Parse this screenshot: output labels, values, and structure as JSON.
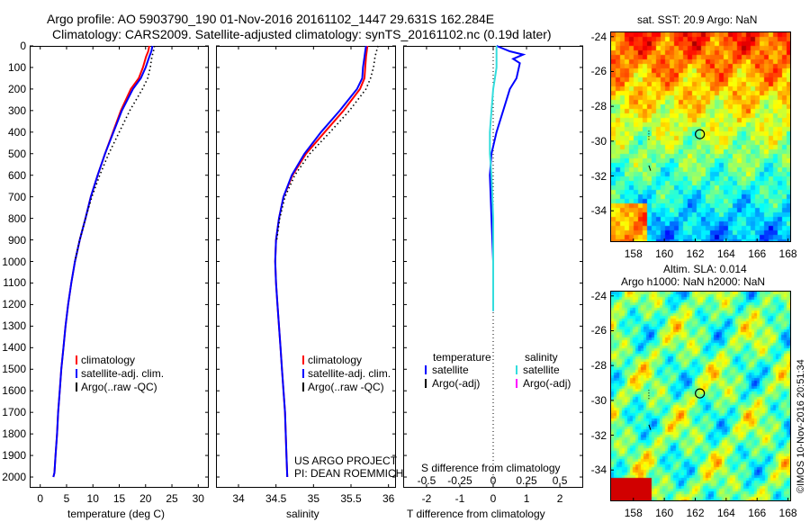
{
  "header": {
    "line1": "Argo profile: AO 5903790_190 01-Nov-2016 20161102_1447 29.631S 162.284E",
    "line2": "Climatology: CARS2009. Satellite-adjusted climatology: synTS_20161102.nc (0.19d later)"
  },
  "colors": {
    "climatology": "#ff0000",
    "satellite": "#0000ff",
    "argo": "#000000",
    "salinity_satellite": "#33dddd",
    "salinity_argo": "#ff00ff"
  },
  "chart_data": [
    {
      "type": "line",
      "name": "temperature",
      "xlabel": "temperature (deg C)",
      "ylabel": "",
      "xlim": [
        -2,
        32
      ],
      "ylim": [
        2050,
        0
      ],
      "xticks": [
        "0",
        "5",
        "10",
        "15",
        "20",
        "25",
        "30"
      ],
      "xtick_values": [
        0,
        5,
        10,
        15,
        20,
        25,
        30
      ],
      "yticks": [
        "0",
        "100",
        "200",
        "300",
        "400",
        "500",
        "600",
        "700",
        "800",
        "900",
        "1000",
        "1100",
        "1200",
        "1300",
        "1400",
        "1500",
        "1600",
        "1700",
        "1800",
        "1900",
        "2000"
      ],
      "legend": [
        "climatology",
        "satellite-adj. clim.",
        "Argo(..raw -QC)"
      ],
      "legend_position": "lower-left",
      "series": [
        {
          "name": "climatology",
          "style": "solid",
          "color": "#ff0000",
          "x": [
            20.7,
            20.5,
            20.1,
            19.5,
            18.7,
            17.2,
            15.3,
            13.8,
            12.3,
            10.9,
            9.6,
            8.6,
            7.5,
            6.6,
            5.9,
            5.3,
            4.8,
            4.4,
            4.0,
            3.7,
            3.4,
            3.2,
            2.9,
            2.7,
            2.5
          ],
          "y": [
            0,
            25,
            50,
            100,
            150,
            200,
            300,
            400,
            500,
            600,
            700,
            800,
            900,
            1000,
            1100,
            1200,
            1300,
            1400,
            1500,
            1600,
            1700,
            1800,
            1900,
            1980,
            2000
          ]
        },
        {
          "name": "satellite-adj. clim.",
          "style": "solid",
          "color": "#0000ff",
          "x": [
            21.3,
            21.1,
            20.7,
            20.0,
            19.1,
            17.6,
            15.5,
            13.9,
            12.3,
            10.9,
            9.6,
            8.6,
            7.5,
            6.6,
            5.9,
            5.3,
            4.8,
            4.4,
            4.0,
            3.7,
            3.4,
            3.2,
            2.9,
            2.7,
            2.5
          ],
          "y": [
            0,
            25,
            50,
            100,
            150,
            200,
            300,
            400,
            500,
            600,
            700,
            800,
            900,
            1000,
            1100,
            1200,
            1300,
            1400,
            1500,
            1600,
            1700,
            1800,
            1900,
            1980,
            2000
          ]
        },
        {
          "name": "Argo(..raw -QC)",
          "style": "dotted",
          "color": "#000000",
          "x": [
            21.7,
            21.5,
            21.2,
            20.9,
            20.4,
            19.4,
            17.0,
            15.0,
            13.0,
            11.3,
            9.8,
            8.6,
            7.5,
            6.6
          ],
          "y": [
            0,
            25,
            50,
            100,
            150,
            200,
            300,
            400,
            500,
            600,
            700,
            800,
            900,
            1000
          ]
        }
      ]
    },
    {
      "type": "line",
      "name": "salinity",
      "xlabel": "salinity",
      "ylabel": "",
      "xlim": [
        33.7,
        36.1
      ],
      "ylim": [
        2050,
        0
      ],
      "xticks": [
        "34",
        "34.5",
        "35",
        "35.5",
        "36"
      ],
      "xtick_values": [
        34,
        34.5,
        35,
        35.5,
        36
      ],
      "legend": [
        "climatology",
        "satellite-adj. clim.",
        "Argo(..raw -QC)"
      ],
      "legend_position": "lower-left",
      "annotations": [
        "US ARGO PROJECT",
        "PI: DEAN ROEMMICH"
      ],
      "series": [
        {
          "name": "climatology",
          "style": "solid",
          "color": "#ff0000",
          "x": [
            35.72,
            35.71,
            35.7,
            35.69,
            35.68,
            35.62,
            35.4,
            35.15,
            34.9,
            34.72,
            34.6,
            34.54,
            34.5,
            34.49,
            34.5,
            34.52,
            34.54,
            34.56,
            34.58,
            34.6,
            34.62,
            34.63,
            34.64,
            34.65
          ],
          "y": [
            0,
            25,
            50,
            100,
            150,
            200,
            300,
            400,
            500,
            600,
            700,
            800,
            900,
            1000,
            1100,
            1200,
            1300,
            1400,
            1500,
            1600,
            1700,
            1800,
            1900,
            2000
          ]
        },
        {
          "name": "satellite-adj. clim.",
          "style": "solid",
          "color": "#0000ff",
          "x": [
            35.7,
            35.69,
            35.68,
            35.66,
            35.65,
            35.58,
            35.35,
            35.1,
            34.88,
            34.71,
            34.6,
            34.54,
            34.5,
            34.49,
            34.5,
            34.52,
            34.54,
            34.56,
            34.58,
            34.6,
            34.62,
            34.63,
            34.64,
            34.65
          ],
          "y": [
            0,
            25,
            50,
            100,
            150,
            200,
            300,
            400,
            500,
            600,
            700,
            800,
            900,
            1000,
            1100,
            1200,
            1300,
            1400,
            1500,
            1600,
            1700,
            1800,
            1900,
            2000
          ]
        },
        {
          "name": "Argo(..raw -QC)",
          "style": "dotted",
          "color": "#000000",
          "x": [
            35.86,
            35.84,
            35.82,
            35.8,
            35.76,
            35.7,
            35.48,
            35.22,
            34.95,
            34.75,
            34.62,
            34.55,
            34.51
          ],
          "y": [
            0,
            25,
            50,
            100,
            150,
            200,
            300,
            400,
            500,
            600,
            700,
            800,
            900
          ]
        }
      ]
    },
    {
      "type": "line",
      "name": "difference",
      "xlabel": "T difference from climatology",
      "top_label": "S difference from climatology",
      "xlim": [
        -2.7,
        2.7
      ],
      "ylim": [
        2050,
        0
      ],
      "xticks": [
        "-2",
        "-1",
        "0",
        "1",
        "2"
      ],
      "xtick_values": [
        -2,
        -1,
        0,
        1,
        2
      ],
      "top_ticks": [
        "-0.5",
        "-0.25",
        "0",
        "0.25",
        "0.5"
      ],
      "top_tick_values": [
        -0.5,
        -0.25,
        0,
        0.25,
        0.5
      ],
      "legend_titles": [
        "temperature",
        "salinity"
      ],
      "legend": [
        "satellite",
        "Argo(-adj)",
        "satellite",
        "Argo(-adj)"
      ],
      "legend_position": "lower-center",
      "series": [
        {
          "name": "temperature satellite",
          "color": "#0000ff",
          "x": [
            0.1,
            0.5,
            0.9,
            0.6,
            0.8,
            0.7,
            0.5,
            0.3,
            0.1,
            -0.05,
            -0.1,
            -0.05,
            0.0,
            0.0,
            0.0
          ],
          "y": [
            0,
            25,
            40,
            60,
            80,
            150,
            200,
            300,
            400,
            500,
            600,
            800,
            1000,
            1200,
            1230
          ]
        },
        {
          "name": "salinity satellite",
          "color": "#33dddd",
          "x": [
            0.1,
            0.1,
            0.1,
            0.05,
            0.0,
            -0.05,
            -0.1,
            -0.1,
            -0.05,
            0.0,
            0.0,
            0.0,
            0.0
          ],
          "y": [
            0,
            50,
            100,
            150,
            200,
            300,
            400,
            500,
            600,
            800,
            1000,
            1200,
            1230
          ]
        }
      ]
    },
    {
      "type": "heatmap",
      "name": "sst_map",
      "title": "sat. SST: 20.9  Argo: NaN",
      "xticks": [
        "158",
        "160",
        "162",
        "164",
        "166",
        "168"
      ],
      "yticks": [
        "-24",
        "-26",
        "-28",
        "-30",
        "-32",
        "-34"
      ],
      "xlim": [
        156.5,
        168.2
      ],
      "ylim": [
        -35.8,
        -23.7
      ],
      "marker": {
        "lon": 162.3,
        "lat": -29.6
      }
    },
    {
      "type": "heatmap",
      "name": "sla_map",
      "title_lines": [
        "Altim. SLA: 0.014",
        "Argo h1000: NaN h2000: NaN"
      ],
      "xticks": [
        "158",
        "160",
        "162",
        "164",
        "166",
        "168"
      ],
      "yticks": [
        "-24",
        "-26",
        "-28",
        "-30",
        "-32",
        "-34"
      ],
      "xlim": [
        156.5,
        168.2
      ],
      "ylim": [
        -35.8,
        -23.7
      ],
      "marker": {
        "lon": 162.3,
        "lat": -29.6
      }
    }
  ],
  "side_text": "©IMOS 10-Nov-2016 20:51:34"
}
